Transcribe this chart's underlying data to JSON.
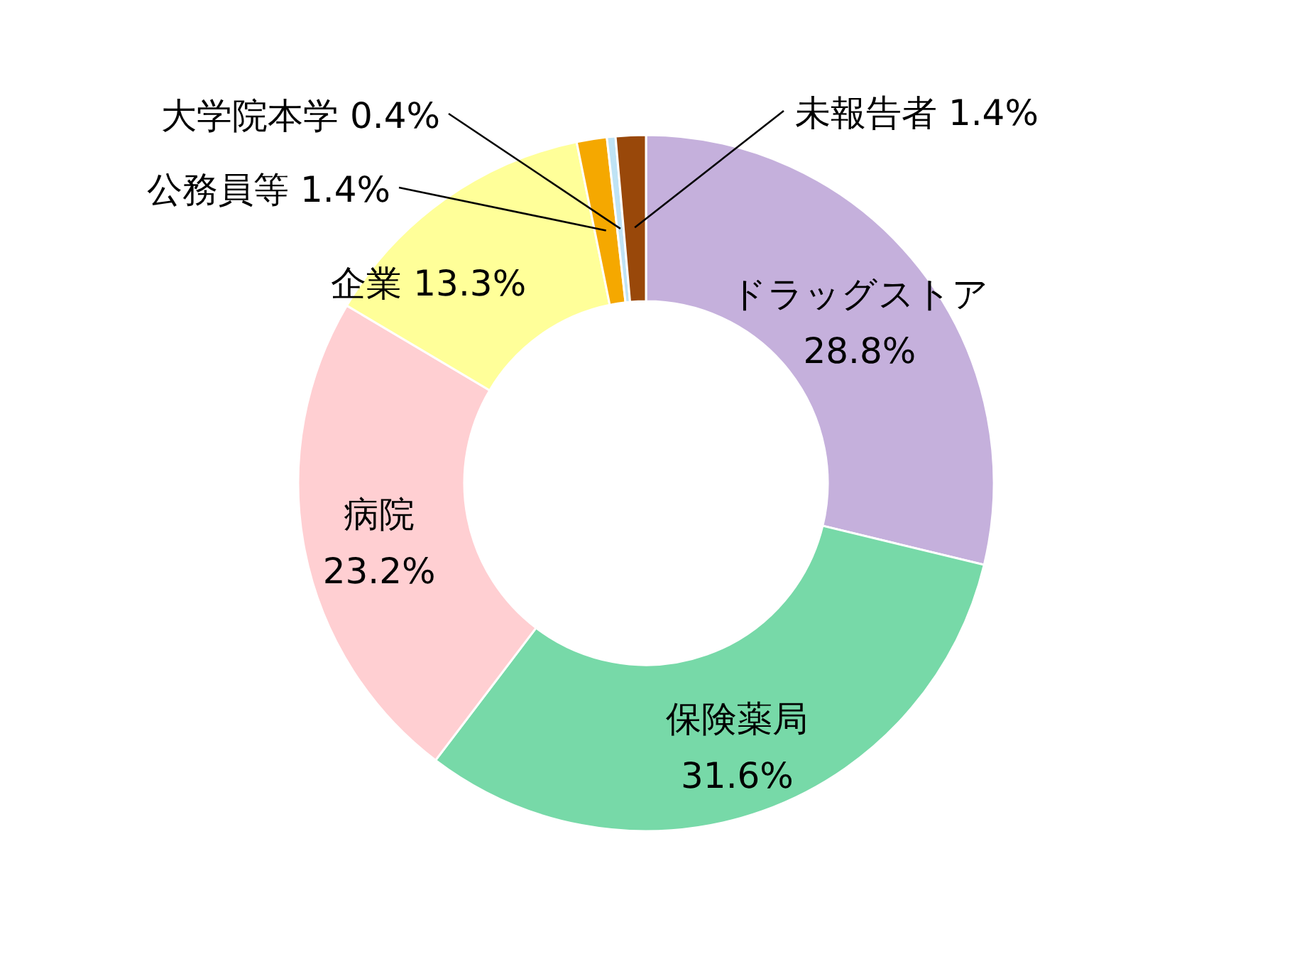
{
  "chart_data": {
    "type": "donut",
    "categories": [
      "ドラッグストア",
      "保険薬局",
      "病院",
      "企業",
      "公務員等",
      "大学院本学",
      "未報告者"
    ],
    "values": [
      28.8,
      31.6,
      23.2,
      13.3,
      1.4,
      0.4,
      1.4
    ],
    "value_labels": [
      "28.8%",
      "31.6%",
      "23.2%",
      "13.3%",
      "1.4%",
      "0.4%",
      "1.4%"
    ],
    "colors": [
      "#c5b0dc",
      "#77d9a8",
      "#ffcfd2",
      "#ffff99",
      "#f5a800",
      "#bfe3f5",
      "#99480a"
    ],
    "legend": false
  }
}
